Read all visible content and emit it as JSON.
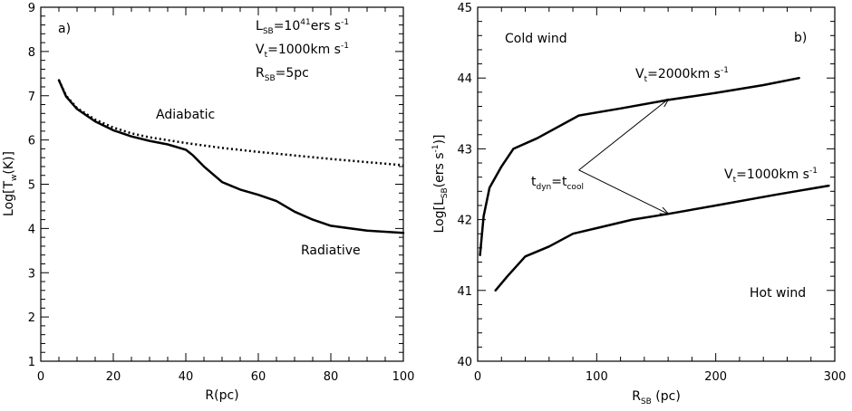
{
  "chart_data": [
    {
      "type": "line",
      "panel_label": "a)",
      "xlabel": "R(pc)",
      "ylabel": "Log[T",
      "ylabel_sub": "w",
      "ylabel_tail": "(K)]",
      "xlim": [
        0,
        100
      ],
      "ylim": [
        1,
        9
      ],
      "xticks": [
        "0",
        "20",
        "40",
        "60",
        "80",
        "100"
      ],
      "yticks": [
        "1",
        "2",
        "3",
        "4",
        "5",
        "6",
        "7",
        "8",
        "9"
      ],
      "params": [
        {
          "main": "L",
          "sub": "SB",
          "rest": "=10",
          "sup": "41",
          "tail": "ers s",
          "sup2": "-1"
        },
        {
          "main": "V",
          "sub": "t",
          "rest": "=1000km s",
          "sup": "-1"
        },
        {
          "main": "R",
          "sub": "SB",
          "rest": "=5pc"
        }
      ],
      "series": [
        {
          "name": "Adiabatic",
          "style": "dotted",
          "x": [
            5,
            7,
            10,
            15,
            20,
            25,
            30,
            40,
            50,
            60,
            70,
            80,
            90,
            100
          ],
          "y": [
            7.35,
            7.0,
            6.72,
            6.46,
            6.28,
            6.15,
            6.06,
            5.93,
            5.82,
            5.73,
            5.65,
            5.57,
            5.5,
            5.43
          ]
        },
        {
          "name": "Radiative",
          "style": "solid",
          "x": [
            5,
            7,
            10,
            15,
            20,
            25,
            30,
            35,
            40,
            42,
            45,
            50,
            55,
            60,
            65,
            70,
            75,
            80,
            90,
            100
          ],
          "y": [
            7.35,
            6.98,
            6.7,
            6.42,
            6.22,
            6.08,
            5.98,
            5.9,
            5.78,
            5.65,
            5.4,
            5.05,
            4.88,
            4.76,
            4.62,
            4.38,
            4.2,
            4.06,
            3.95,
            3.9
          ]
        }
      ]
    },
    {
      "type": "line",
      "panel_label": "b)",
      "xlabel": "R",
      "xlabel_sub": "SB",
      "xlabel_tail": " (pc)",
      "ylabel": "Log[L",
      "ylabel_sub": "SB",
      "ylabel_tail": "(ers s",
      "ylabel_sup": "-1",
      "ylabel_end": ")]",
      "xlim": [
        0,
        300
      ],
      "ylim": [
        40,
        45
      ],
      "xticks": [
        "0",
        "100",
        "200",
        "300"
      ],
      "yticks": [
        "40",
        "41",
        "42",
        "43",
        "44",
        "45"
      ],
      "regions": {
        "top": "Cold wind",
        "bottom": "Hot wind"
      },
      "condition": {
        "main1": "t",
        "sub1": "dyn",
        "eq": "=t",
        "sub2": "cool"
      },
      "series": [
        {
          "name_main": "V",
          "name_sub": "t",
          "name_rest": "=2000km s",
          "name_sup": "-1",
          "x": [
            2,
            5,
            10,
            20,
            30,
            50,
            85,
            120,
            160,
            200,
            240,
            270
          ],
          "y": [
            41.5,
            42.05,
            42.45,
            42.75,
            43.0,
            43.15,
            43.47,
            43.57,
            43.69,
            43.79,
            43.9,
            44.0
          ]
        },
        {
          "name_main": "V",
          "name_sub": "t",
          "name_rest": "=1000km s",
          "name_sup": "-1",
          "x": [
            15,
            25,
            40,
            60,
            80,
            100,
            130,
            160,
            200,
            250,
            295
          ],
          "y": [
            41.0,
            41.2,
            41.48,
            41.62,
            41.8,
            41.88,
            42.0,
            42.08,
            42.2,
            42.35,
            42.48
          ]
        }
      ],
      "arrows": {
        "from": [
          85,
          42.7
        ],
        "to": [
          [
            160,
            43.7
          ],
          [
            160,
            42.08
          ]
        ]
      }
    }
  ]
}
